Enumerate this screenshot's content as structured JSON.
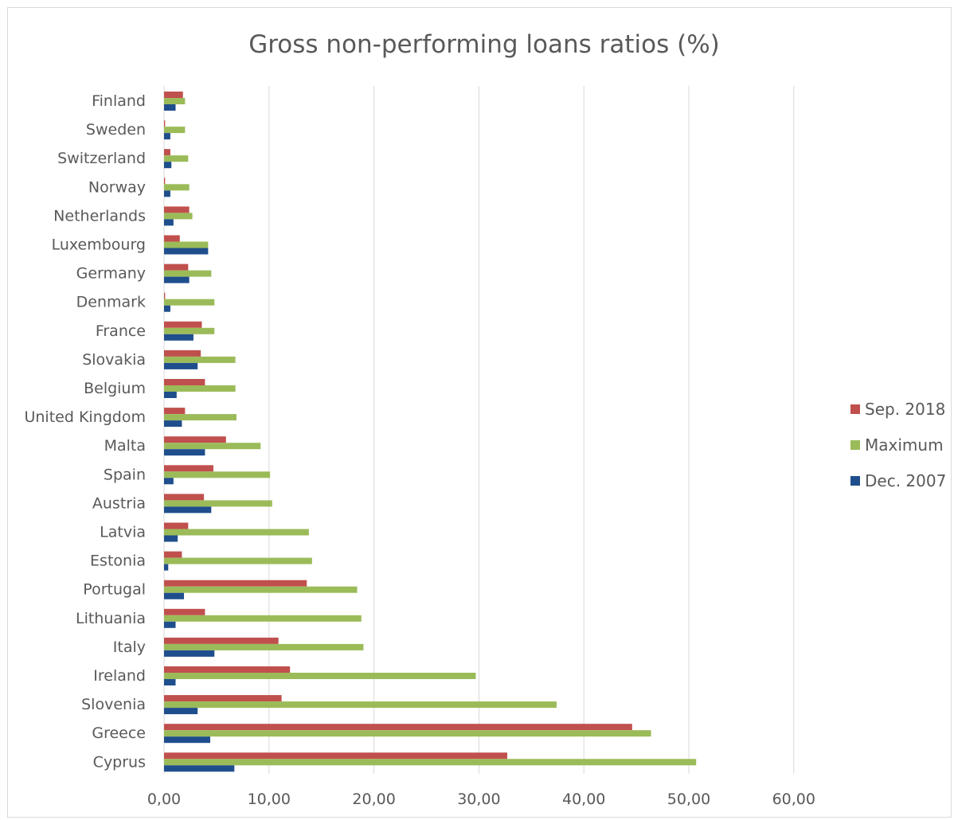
{
  "chart_data": {
    "type": "bar",
    "orientation": "horizontal",
    "title": "Gross non-performing loans ratios (%)",
    "xlabel": "",
    "ylabel": "",
    "xlim": [
      0,
      60
    ],
    "x_ticks": [
      "0,00",
      "10,00",
      "20,00",
      "30,00",
      "40,00",
      "50,00",
      "60,00"
    ],
    "grid": "vertical",
    "legend_position": "right",
    "categories": [
      "Finland",
      "Sweden",
      "Switzerland",
      "Norway",
      "Netherlands",
      "Luxembourg",
      "Germany",
      "Denmark",
      "France",
      "Slovakia",
      "Belgium",
      "United Kingdom",
      "Malta",
      "Spain",
      "Austria",
      "Latvia",
      "Estonia",
      "Portugal",
      "Lithuania",
      "Italy",
      "Ireland",
      "Slovenia",
      "Greece",
      "Cyprus"
    ],
    "series": [
      {
        "name": "Sep. 2018",
        "color": "#c0504d",
        "values": [
          1.8,
          0.1,
          0.6,
          0.1,
          2.4,
          1.5,
          2.3,
          0.1,
          3.6,
          3.5,
          3.9,
          2.0,
          5.9,
          4.7,
          3.8,
          2.3,
          1.7,
          13.6,
          3.9,
          10.9,
          12.0,
          11.2,
          44.6,
          32.7
        ]
      },
      {
        "name": "Maximum",
        "color": "#9bbb59",
        "values": [
          2.0,
          2.0,
          2.3,
          2.4,
          2.7,
          4.2,
          4.5,
          4.8,
          4.8,
          6.8,
          6.8,
          6.9,
          9.2,
          10.1,
          10.3,
          13.8,
          14.1,
          18.4,
          18.8,
          19.0,
          29.7,
          37.4,
          46.4,
          50.7
        ]
      },
      {
        "name": "Dec. 2007",
        "color": "#1f4e8c",
        "values": [
          1.1,
          0.6,
          0.7,
          0.6,
          0.9,
          4.2,
          2.4,
          0.6,
          2.8,
          3.2,
          1.2,
          1.7,
          3.9,
          0.9,
          4.5,
          1.3,
          0.4,
          1.9,
          1.1,
          4.8,
          1.1,
          3.2,
          4.4,
          6.7
        ]
      }
    ]
  }
}
